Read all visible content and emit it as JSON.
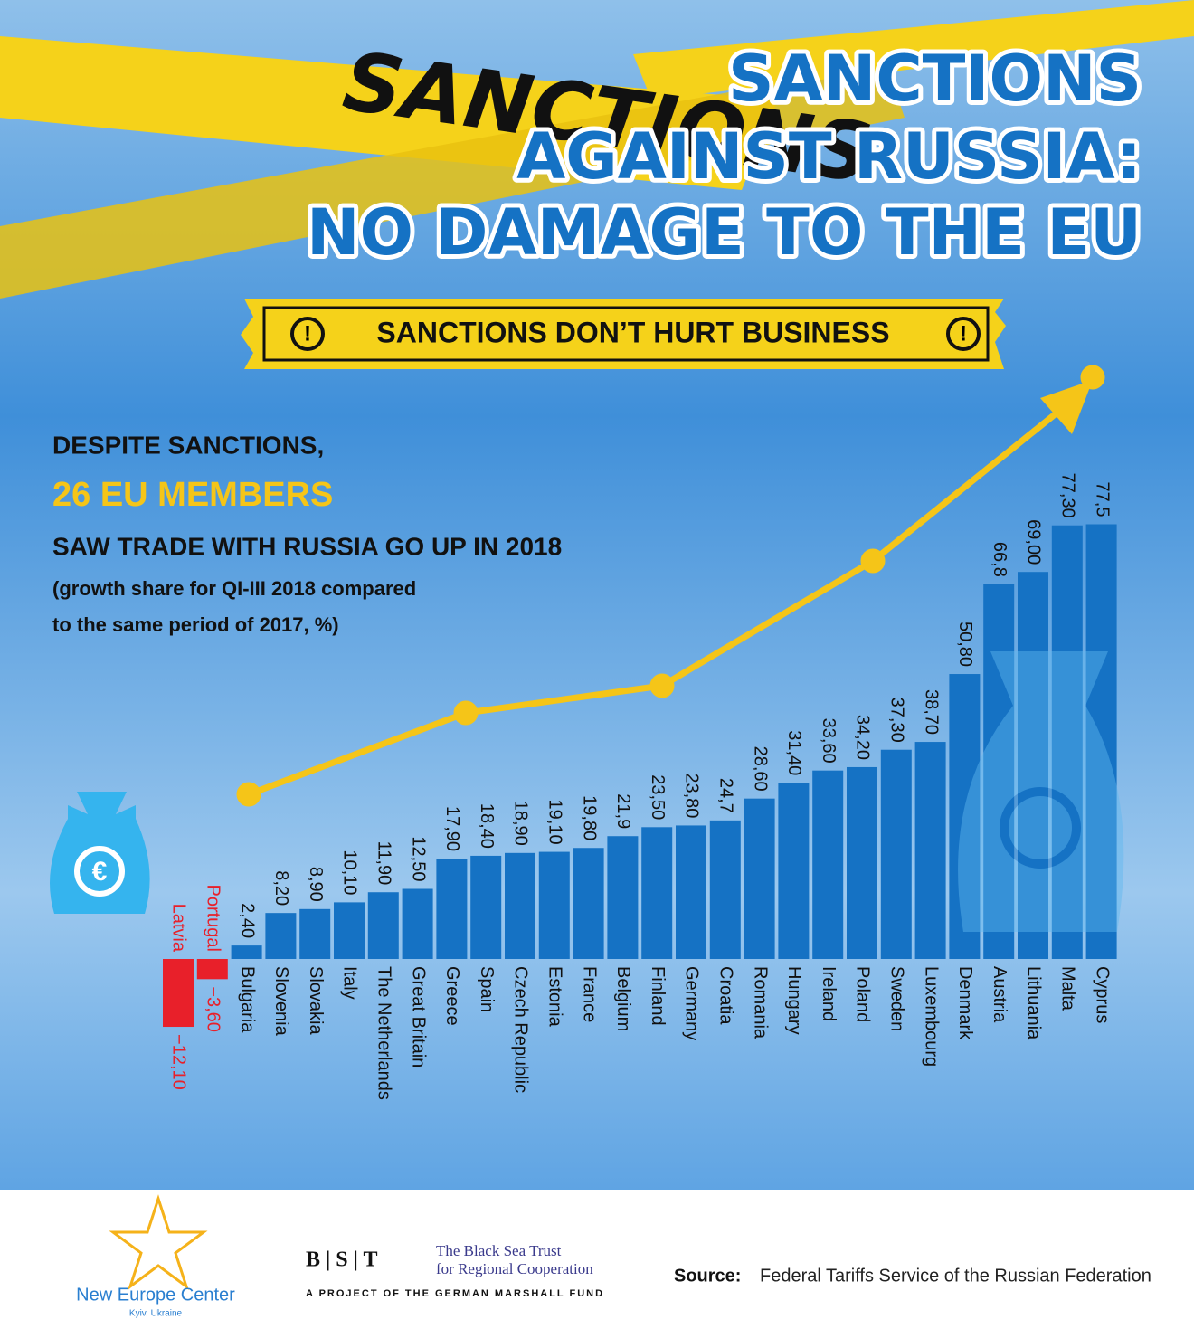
{
  "background_text": "SANCTIONS",
  "title_lines": [
    "SANCTIONS",
    "AGAINST RUSSIA:",
    "NO DAMAGE TO THE EU"
  ],
  "banner": "SANCTIONS DON’T HURT BUSINESS",
  "subtitle_lines": [
    "DESPITE SANCTIONS,",
    "26 EU MEMBERS",
    "SAW TRADE WITH RUSSIA GO UP IN 2018"
  ],
  "note_lines": [
    "(growth share for QI-III 2018 compared",
    "to the same period of 2017, %)"
  ],
  "chart_data": {
    "type": "bar",
    "color": "#1572c4",
    "negative_color": "#e8202a",
    "categories": [
      "Latvia",
      "Portugal",
      "Bulgaria",
      "Slovenia",
      "Slovakia",
      "Italy",
      "The Netherlands",
      "Great Britain",
      "Greece",
      "Spain",
      "Czech Republic",
      "Estonia",
      "France",
      "Belgium",
      "Finland",
      "Germany",
      "Croatia",
      "Romania",
      "Hungary",
      "Ireland",
      "Poland",
      "Sweden",
      "Luxembourg",
      "Denmark",
      "Austria",
      "Lithuania",
      "Malta",
      "Cyprus"
    ],
    "values": [
      -12.1,
      -3.6,
      2.4,
      8.2,
      8.9,
      10.1,
      11.9,
      12.5,
      17.9,
      18.4,
      18.9,
      19.1,
      19.8,
      21.9,
      23.5,
      23.8,
      24.7,
      28.6,
      31.4,
      33.6,
      34.2,
      37.3,
      38.7,
      50.8,
      66.8,
      69.0,
      77.3,
      77.5
    ],
    "value_labels": [
      "−12,10",
      "−3,60",
      "2,40",
      "8,20",
      "8,90",
      "10,10",
      "11,90",
      "12,50",
      "17,90",
      "18,40",
      "18,90",
      "19,10",
      "19,80",
      "21,9",
      "23,50",
      "23,80",
      "24,7",
      "28,60",
      "31,40",
      "33,60",
      "34,20",
      "37,30",
      "38,70",
      "50,80",
      "66,8",
      "69,00",
      "77,30",
      "77,5"
    ]
  },
  "footer": {
    "org1_name": "New Europe Center",
    "org1_place": "Kyiv, Ukraine",
    "org2_logo": "B | S | T",
    "org2_name_lines": [
      "The Black Sea Trust",
      "for Regional Cooperation"
    ],
    "org2_tagline": "A PROJECT OF THE GERMAN MARSHALL FUND",
    "source_label": "Source:",
    "source_text": "Federal Tariffs Service of the Russian Federation"
  }
}
